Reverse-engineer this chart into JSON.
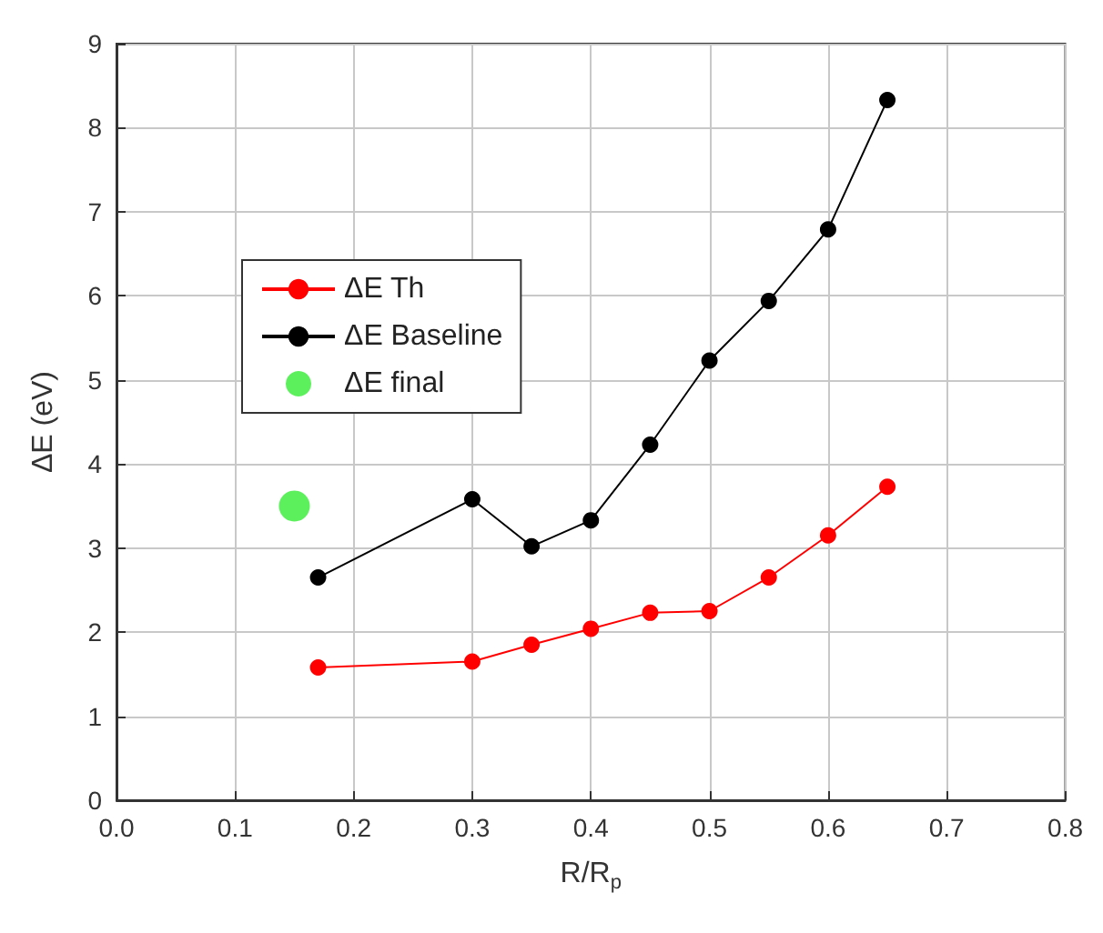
{
  "chart_data": {
    "type": "line",
    "xlabel": "R/R$_{p}$",
    "ylabel": "ΔE (eV)",
    "xlim": [
      0,
      0.8
    ],
    "xticks": [
      {
        "value": 0,
        "label": "0.0"
      },
      {
        "value": 0.1,
        "label": "0.1"
      },
      {
        "value": 0.2,
        "label": "0.2"
      },
      {
        "value": 0.3,
        "label": "0.3"
      },
      {
        "value": 0.4,
        "label": "0.4"
      },
      {
        "value": 0.5,
        "label": "0.5"
      },
      {
        "value": 0.6,
        "label": "0.6"
      },
      {
        "value": 0.7,
        "label": "0.7"
      },
      {
        "value": 0.8,
        "label": "0.8"
      }
    ],
    "ylim": [
      0,
      9
    ],
    "yticks": [
      0,
      1,
      2,
      3,
      4,
      5,
      6,
      7,
      8,
      9
    ],
    "grid": true,
    "legend": "top left",
    "marker": "circle",
    "line_style": "solid",
    "series": [
      {
        "name": "ΔE Th",
        "color": "#ff0000",
        "x": [
          0.17,
          0.3,
          0.35,
          0.4,
          0.45,
          0.5,
          0.55,
          0.6,
          0.65
        ],
        "values": [
          1.58,
          1.65,
          1.85,
          2.04,
          2.23,
          2.25,
          2.65,
          3.15,
          3.73
        ]
      },
      {
        "name": "ΔE Baseline",
        "color": "#000000",
        "x": [
          0.17,
          0.3,
          0.35,
          0.4,
          0.45,
          0.5,
          0.55,
          0.6,
          0.65
        ],
        "values": [
          2.65,
          3.58,
          3.02,
          3.33,
          4.23,
          5.23,
          5.94,
          6.79,
          8.33
        ]
      },
      {
        "name": "ΔE final",
        "type": "scatter",
        "color": "#33ee33",
        "x": [
          0.15
        ],
        "values": [
          3.5
        ]
      }
    ]
  }
}
